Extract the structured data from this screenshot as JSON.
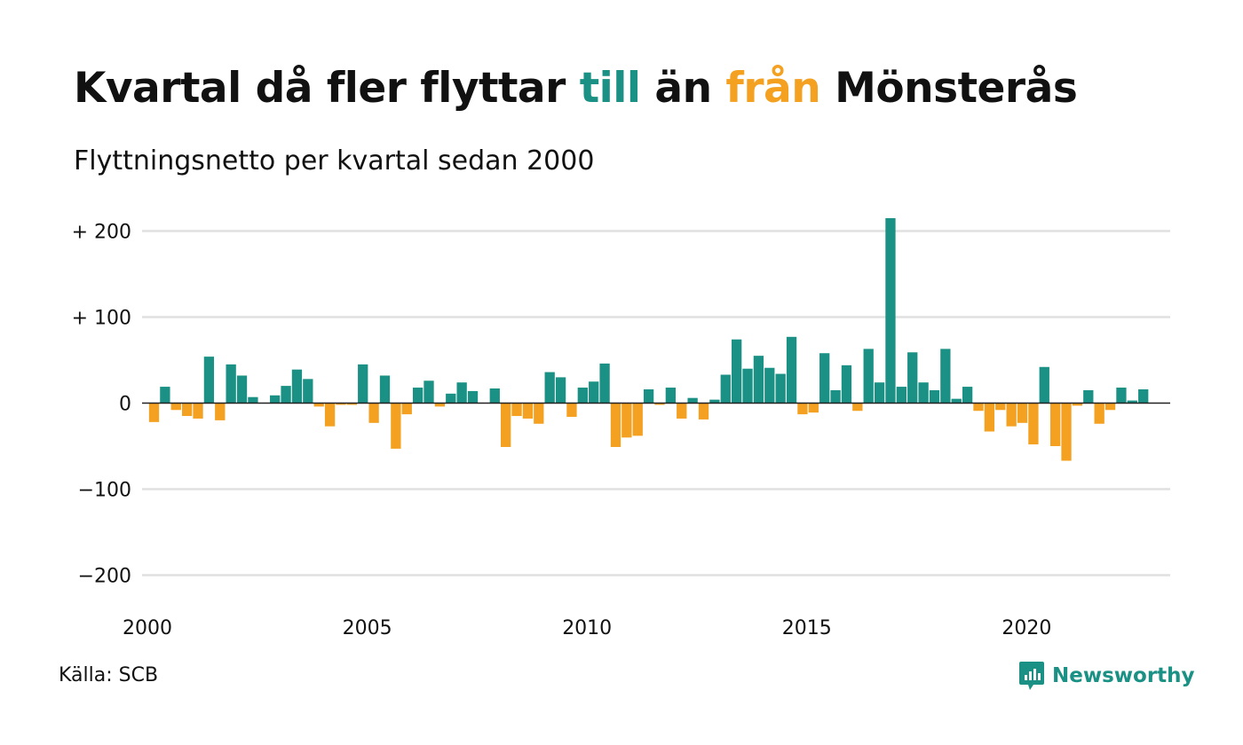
{
  "title": {
    "part1": "Kvartal då fler flyttar ",
    "till": "till",
    "part2": " än ",
    "fran": "från",
    "part3": " Mönsterås"
  },
  "subtitle": "Flyttningsnetto per kvartal sedan 2000",
  "source": "Källa: SCB",
  "brand": {
    "name": "Newsworthy",
    "icon": "newsworthy-logo-icon"
  },
  "colors": {
    "positive": "#1a9184",
    "negative": "#f4a020",
    "grid": "#e0e0e0",
    "text": "#111111"
  },
  "chart_data": {
    "type": "bar",
    "ylim": [
      -220,
      230
    ],
    "yticks": [
      {
        "value": 200,
        "label": "+ 200"
      },
      {
        "value": 100,
        "label": "+ 100"
      },
      {
        "value": 0,
        "label": "0"
      },
      {
        "value": -100,
        "label": "−100"
      },
      {
        "value": -200,
        "label": "−200"
      }
    ],
    "xticks": [
      {
        "year": 2000,
        "label": "2000"
      },
      {
        "year": 2005,
        "label": "2005"
      },
      {
        "year": 2010,
        "label": "2010"
      },
      {
        "year": 2015,
        "label": "2015"
      },
      {
        "year": 2020,
        "label": "2020"
      }
    ],
    "grid": true,
    "start_year": 2000,
    "start_quarter": 1,
    "values": [
      -22,
      19,
      -8,
      -15,
      -18,
      54,
      -20,
      45,
      32,
      7,
      0,
      9,
      20,
      39,
      28,
      -4,
      -27,
      -2,
      -2,
      45,
      -23,
      32,
      -53,
      -13,
      18,
      26,
      -4,
      11,
      24,
      14,
      0,
      17,
      -51,
      -15,
      -18,
      -24,
      36,
      30,
      -16,
      18,
      25,
      46,
      -51,
      -40,
      -38,
      16,
      -2,
      18,
      -18,
      6,
      -19,
      4,
      33,
      74,
      40,
      55,
      41,
      34,
      77,
      -13,
      -11,
      58,
      15,
      44,
      -9,
      63,
      24,
      215,
      19,
      59,
      24,
      15,
      63,
      5,
      19,
      -9,
      -33,
      -8,
      -27,
      -23,
      -48,
      42,
      -50,
      -67,
      -3,
      15,
      -24,
      -8,
      18,
      3,
      16
    ]
  }
}
